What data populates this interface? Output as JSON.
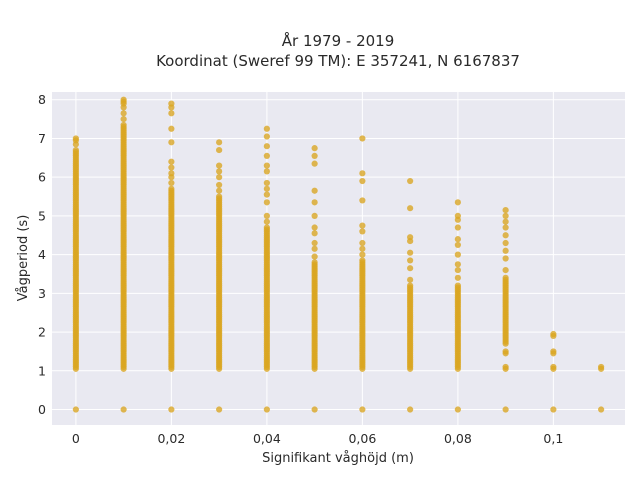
{
  "chart_data": {
    "type": "scatter",
    "title_lines": [
      "År 1979 - 2019",
      "Koordinat (Sweref 99 TM): E 357241, N 6167837"
    ],
    "xlabel": "Signifikant våghöjd (m)",
    "ylabel": "Vågperiod (s)",
    "xlim": [
      -0.005,
      0.115
    ],
    "ylim": [
      -0.4,
      8.2
    ],
    "x_ticks": [
      0,
      0.02,
      0.04,
      0.06,
      0.08,
      0.1
    ],
    "x_tick_labels": [
      "0",
      "0,02",
      "0,04",
      "0,06",
      "0,08",
      "0,1"
    ],
    "y_ticks": [
      0,
      1,
      2,
      3,
      4,
      5,
      6,
      7,
      8
    ],
    "y_tick_labels": [
      "0",
      "1",
      "2",
      "3",
      "4",
      "5",
      "6",
      "7",
      "8"
    ],
    "grid": true,
    "legend": "none",
    "marker_color": "#DAA520",
    "background_color": "#E9E9F1",
    "columns": [
      {
        "x": 0.0,
        "zero": true,
        "dense": [
          1.05,
          6.7
        ],
        "extra": [
          6.85,
          6.95,
          7.0
        ]
      },
      {
        "x": 0.01,
        "zero": true,
        "dense": [
          1.05,
          7.35
        ],
        "extra": [
          7.5,
          7.65,
          7.8,
          7.9,
          7.95,
          8.0
        ]
      },
      {
        "x": 0.02,
        "zero": true,
        "dense": [
          1.05,
          5.7
        ],
        "extra": [
          5.85,
          6.0,
          6.1,
          6.25,
          6.4,
          6.9,
          7.25,
          7.65,
          7.8,
          7.9
        ]
      },
      {
        "x": 0.03,
        "zero": true,
        "dense": [
          1.05,
          5.5
        ],
        "extra": [
          5.65,
          5.8,
          6.0,
          6.15,
          6.3,
          6.7,
          6.9
        ]
      },
      {
        "x": 0.04,
        "zero": true,
        "dense": [
          1.05,
          4.7
        ],
        "extra": [
          4.85,
          5.0,
          5.35,
          5.55,
          5.7,
          5.85,
          6.15,
          6.3,
          6.55,
          6.8,
          7.05,
          7.25
        ]
      },
      {
        "x": 0.05,
        "zero": true,
        "dense": [
          1.05,
          3.8
        ],
        "extra": [
          3.95,
          4.15,
          4.3,
          4.55,
          4.7,
          5.0,
          5.35,
          5.65,
          6.35,
          6.55,
          6.75
        ]
      },
      {
        "x": 0.06,
        "zero": true,
        "dense": [
          1.05,
          3.85
        ],
        "extra": [
          4.0,
          4.15,
          4.3,
          4.6,
          4.75,
          5.4,
          5.9,
          6.1,
          7.0
        ]
      },
      {
        "x": 0.07,
        "zero": true,
        "dense": [
          1.05,
          3.2
        ],
        "extra": [
          3.35,
          3.65,
          3.85,
          4.05,
          4.35,
          4.45,
          5.2,
          5.9
        ]
      },
      {
        "x": 0.08,
        "zero": true,
        "dense": [
          1.05,
          3.2
        ],
        "extra": [
          3.4,
          3.6,
          3.75,
          4.0,
          4.25,
          4.4,
          4.7,
          4.9,
          5.0,
          5.35
        ]
      },
      {
        "x": 0.09,
        "zero": true,
        "dense": [
          1.7,
          3.4
        ],
        "extra": [
          1.05,
          1.1,
          1.45,
          1.5,
          3.6,
          3.9,
          4.1,
          4.3,
          4.5,
          4.7,
          4.85,
          5.0,
          5.15
        ]
      },
      {
        "x": 0.1,
        "zero": true,
        "dense": null,
        "extra": [
          1.05,
          1.1,
          1.45,
          1.5,
          1.9,
          1.95
        ]
      },
      {
        "x": 0.11,
        "zero": true,
        "dense": null,
        "extra": [
          1.05,
          1.1
        ]
      }
    ]
  }
}
